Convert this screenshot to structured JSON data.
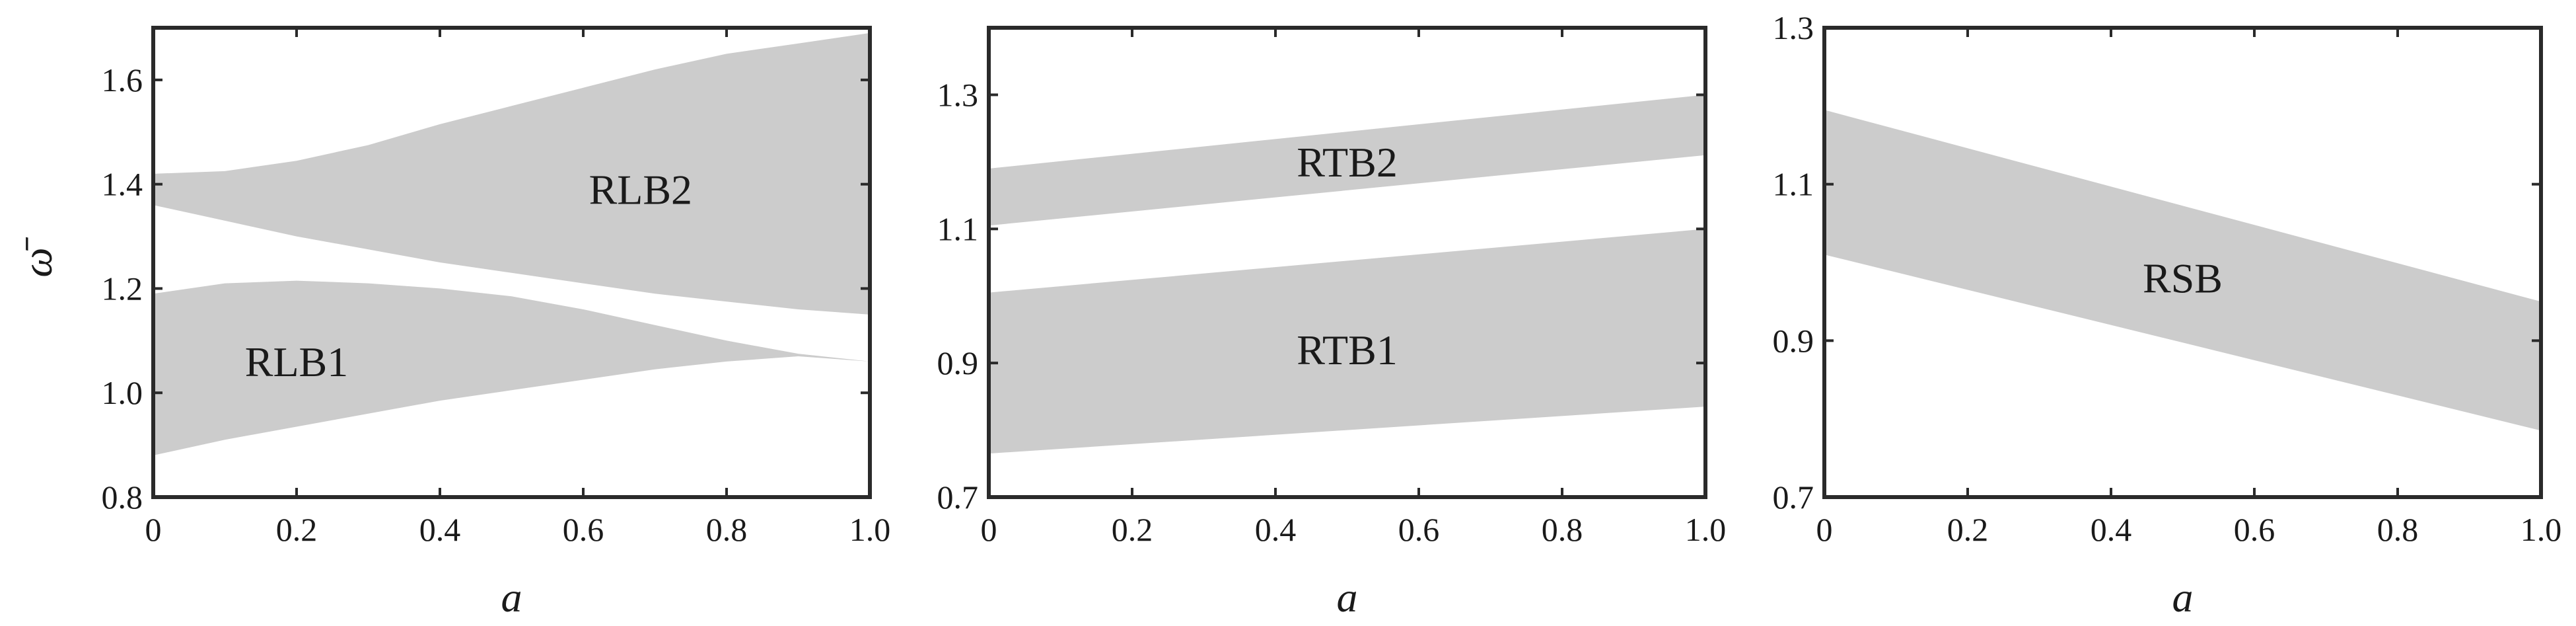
{
  "chart_data": [
    {
      "type": "area",
      "ylabel": "ω̄",
      "xlabel": "a",
      "xlim": [
        0,
        1
      ],
      "ylim": [
        0.8,
        1.7
      ],
      "xticks": [
        "0",
        "0.2",
        "0.4",
        "0.6",
        "0.8",
        "1.0"
      ],
      "yticks": [
        "0.8",
        "1.0",
        "1.2",
        "1.4",
        "1.6"
      ],
      "grid": false,
      "bands": [
        {
          "name": "RLB1",
          "label_at": [
            0.2,
            1.06
          ],
          "x": [
            0,
            0.1,
            0.2,
            0.3,
            0.4,
            0.5,
            0.6,
            0.7,
            0.8,
            0.9,
            1.0
          ],
          "lower": [
            0.88,
            0.91,
            0.935,
            0.96,
            0.985,
            1.005,
            1.025,
            1.045,
            1.06,
            1.07,
            1.06
          ],
          "upper": [
            1.19,
            1.21,
            1.215,
            1.21,
            1.2,
            1.185,
            1.16,
            1.13,
            1.1,
            1.075,
            1.06
          ]
        },
        {
          "name": "RLB2",
          "label_at": [
            0.68,
            1.39
          ],
          "x": [
            0,
            0.1,
            0.2,
            0.3,
            0.4,
            0.5,
            0.6,
            0.7,
            0.8,
            0.9,
            1.0
          ],
          "lower": [
            1.36,
            1.33,
            1.3,
            1.275,
            1.25,
            1.23,
            1.21,
            1.19,
            1.175,
            1.16,
            1.15
          ],
          "upper": [
            1.42,
            1.425,
            1.445,
            1.475,
            1.515,
            1.55,
            1.585,
            1.62,
            1.65,
            1.67,
            1.69
          ]
        }
      ]
    },
    {
      "type": "area",
      "xlabel": "a",
      "xlim": [
        0,
        1
      ],
      "ylim": [
        0.7,
        1.4
      ],
      "xticks": [
        "0",
        "0.2",
        "0.4",
        "0.6",
        "0.8",
        "1.0"
      ],
      "yticks": [
        "0.7",
        "0.9",
        "1.1",
        "1.3"
      ],
      "grid": false,
      "bands": [
        {
          "name": "RTB1",
          "label_at": [
            0.5,
            0.92
          ],
          "x": [
            0,
            1.0
          ],
          "lower": [
            0.765,
            0.835
          ],
          "upper": [
            1.005,
            1.1
          ]
        },
        {
          "name": "RTB2",
          "label_at": [
            0.5,
            1.2
          ],
          "x": [
            0,
            1.0
          ],
          "lower": [
            1.105,
            1.21
          ],
          "upper": [
            1.19,
            1.3
          ]
        }
      ]
    },
    {
      "type": "area",
      "xlabel": "a",
      "xlim": [
        0,
        1
      ],
      "ylim": [
        0.7,
        1.3
      ],
      "xticks": [
        "0",
        "0.2",
        "0.4",
        "0.6",
        "0.8",
        "1.0"
      ],
      "yticks": [
        "0.7",
        "0.9",
        "1.1",
        "1.3"
      ],
      "grid": false,
      "bands": [
        {
          "name": "RSB",
          "label_at": [
            0.5,
            0.98
          ],
          "x": [
            0,
            1.0
          ],
          "lower": [
            1.01,
            0.785
          ],
          "upper": [
            1.195,
            0.95
          ]
        }
      ]
    }
  ]
}
